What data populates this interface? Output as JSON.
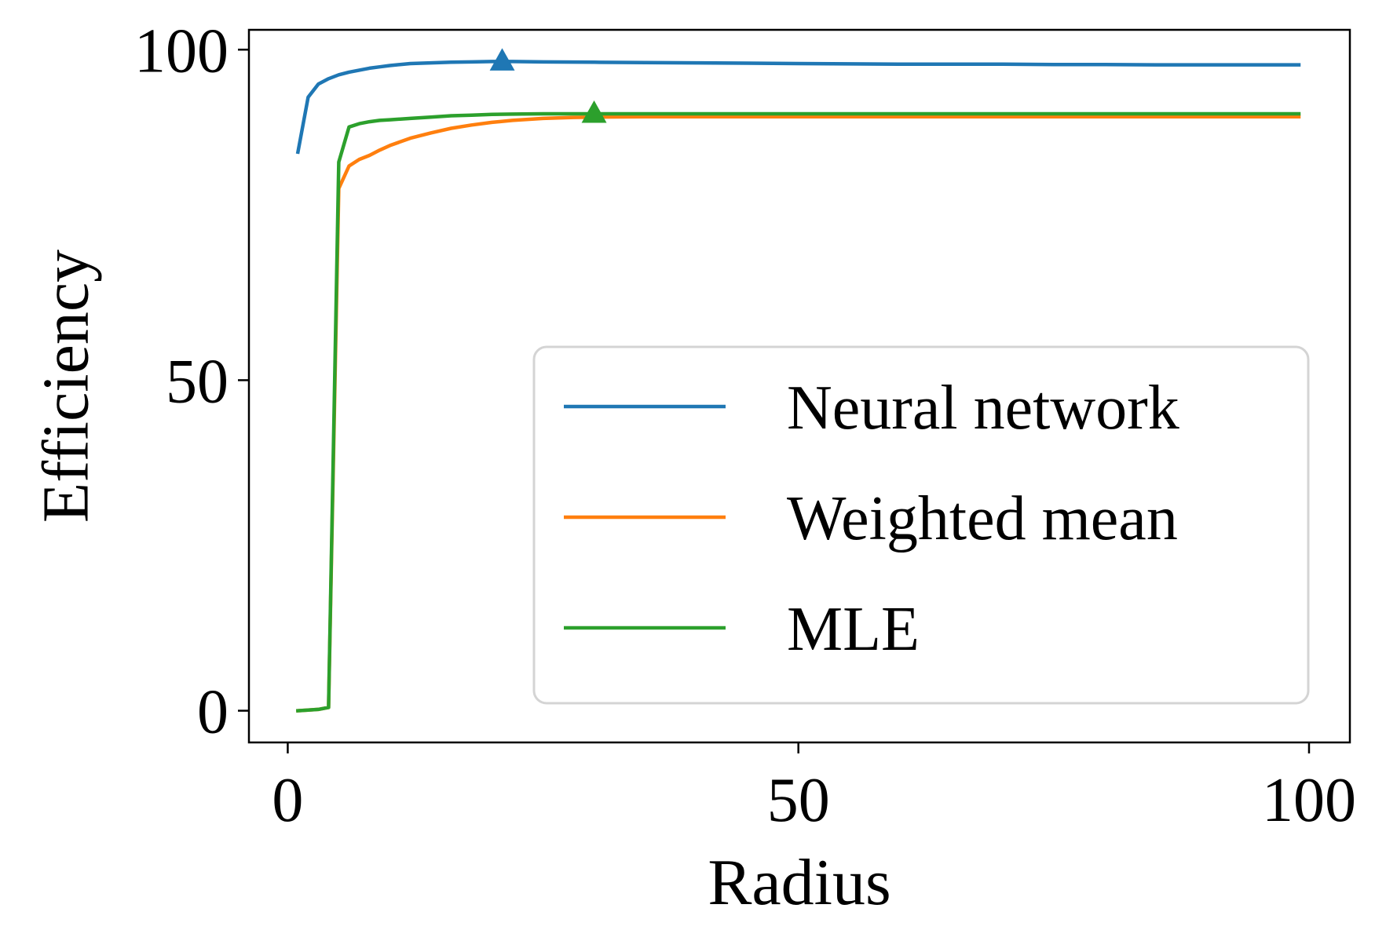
{
  "chart_data": {
    "type": "line",
    "title": "",
    "xlabel": "Radius",
    "ylabel": "Efficiency",
    "xlim": [
      -3.8,
      104
    ],
    "ylim": [
      -4.8,
      103
    ],
    "xticks": [
      0,
      50,
      100
    ],
    "yticks": [
      0,
      50,
      100
    ],
    "grid": false,
    "legend": "lower-right",
    "series": [
      {
        "name": "Neural network",
        "color": "#1f77b4",
        "x": [
          1,
          2,
          3,
          4,
          5,
          6,
          7,
          8,
          9,
          10,
          12,
          14,
          16,
          18,
          20,
          22,
          25,
          30,
          35,
          40,
          45,
          50,
          55,
          60,
          65,
          70,
          75,
          80,
          85,
          90,
          95,
          99
        ],
        "y": [
          84.5,
          92.8,
          94.8,
          95.6,
          96.2,
          96.6,
          96.9,
          97.2,
          97.4,
          97.6,
          97.9,
          98.0,
          98.1,
          98.15,
          98.2,
          98.2,
          98.15,
          98.1,
          98.05,
          98.0,
          97.95,
          97.9,
          97.85,
          97.8,
          97.8,
          97.8,
          97.75,
          97.75,
          97.7,
          97.7,
          97.7,
          97.7
        ],
        "marker": {
          "x": 21,
          "y": 98.2
        }
      },
      {
        "name": "Weighted mean",
        "color": "#ff7f0e",
        "x": [
          1,
          2,
          3,
          4,
          5,
          6,
          7,
          8,
          9,
          10,
          12,
          14,
          16,
          18,
          20,
          22,
          25,
          28,
          30,
          35,
          40,
          50,
          60,
          70,
          80,
          90,
          99
        ],
        "y": [
          0,
          0.1,
          0.2,
          0.5,
          79.0,
          82.4,
          83.4,
          84.0,
          84.8,
          85.5,
          86.6,
          87.4,
          88.1,
          88.6,
          89.0,
          89.3,
          89.6,
          89.75,
          89.8,
          89.85,
          89.85,
          89.85,
          89.85,
          89.85,
          89.85,
          89.85,
          89.85
        ]
      },
      {
        "name": "MLE",
        "color": "#2ca02c",
        "x": [
          1,
          2,
          3,
          4,
          5,
          6,
          7,
          8,
          9,
          10,
          12,
          14,
          16,
          18,
          20,
          22,
          25,
          28,
          30,
          35,
          40,
          50,
          60,
          70,
          80,
          90,
          99
        ],
        "y": [
          0,
          0.1,
          0.2,
          0.5,
          83.0,
          88.3,
          88.8,
          89.1,
          89.3,
          89.4,
          89.6,
          89.8,
          90.0,
          90.1,
          90.2,
          90.25,
          90.3,
          90.3,
          90.3,
          90.3,
          90.3,
          90.3,
          90.3,
          90.3,
          90.3,
          90.3,
          90.3
        ],
        "marker": {
          "x": 30,
          "y": 90.3
        }
      }
    ]
  }
}
